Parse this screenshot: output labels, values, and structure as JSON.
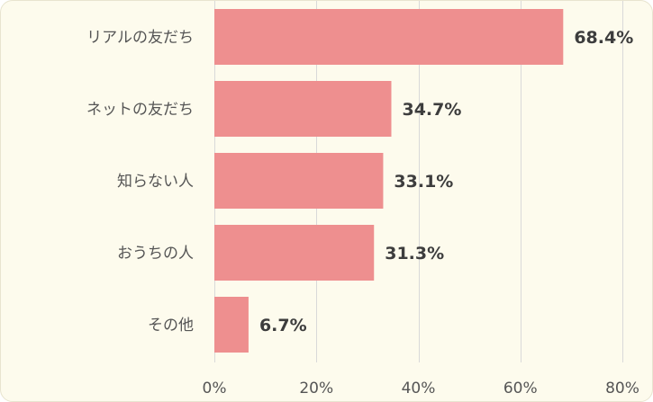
{
  "chart_data": {
    "type": "bar",
    "orientation": "horizontal",
    "categories": [
      "リアルの友だち",
      "ネットの友だち",
      "知らない人",
      "おうちの人",
      "その他"
    ],
    "values": [
      68.4,
      34.7,
      33.1,
      31.3,
      6.7
    ],
    "value_labels": [
      "68.4%",
      "34.7%",
      "33.1%",
      "31.3%",
      "6.7%"
    ],
    "xlim": [
      0,
      80
    ],
    "xticks": [
      0,
      20,
      40,
      60,
      80
    ],
    "xtick_labels": [
      "0%",
      "20%",
      "40%",
      "60%",
      "80%"
    ],
    "grid": true,
    "bar_color": "#ee8f8f",
    "background_color": "#fdfbed"
  }
}
